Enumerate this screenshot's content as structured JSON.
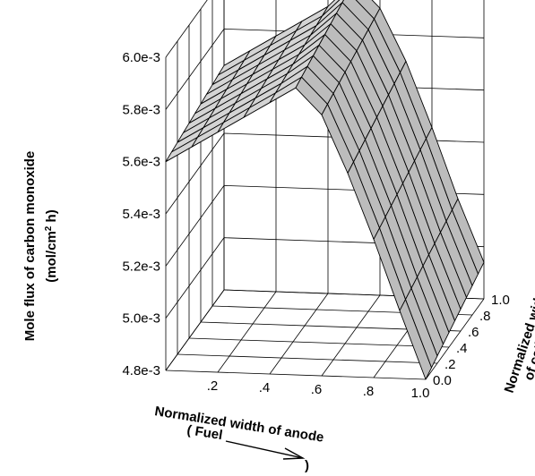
{
  "chart_data": {
    "type": "surface3d",
    "title": "",
    "zlabel_line1": "Mole flux of carbon monoxide",
    "zlabel_line2_prefix": "(mol/cm",
    "zlabel_line2_sup": "2",
    "zlabel_line2_suffix": " h)",
    "xlabel_line1": "Normalized width of anode",
    "xlabel_line2": "( Fuel",
    "xlabel_line2_end": ")",
    "ylabel_line1": "Normalized width",
    "ylabel_line2": "of cathode",
    "x_ticks": [
      ".2",
      ".4",
      ".6",
      ".8",
      "1.0"
    ],
    "y_ticks": [
      "0.0",
      ".2",
      ".4",
      ".6",
      ".8",
      "1.0"
    ],
    "z_ticks": [
      "4.8e-3",
      "5.0e-3",
      "5.2e-3",
      "5.4e-3",
      "5.6e-3",
      "5.8e-3",
      "6.0e-3"
    ],
    "xlim": [
      0.0,
      1.0
    ],
    "ylim": [
      0.0,
      1.0
    ],
    "zlim": [
      0.0048,
      0.006
    ],
    "x": [
      0.0,
      0.1,
      0.2,
      0.3,
      0.4,
      0.5,
      0.6,
      0.7,
      0.8,
      0.9,
      1.0
    ],
    "y": [
      0.0,
      0.1,
      0.2,
      0.3,
      0.4,
      0.5,
      0.6,
      0.7,
      0.8,
      0.9,
      1.0
    ],
    "z_at_y0": [
      0.0056,
      0.00566,
      0.00572,
      0.00578,
      0.00584,
      0.0059,
      0.0058,
      0.00558,
      0.00533,
      0.00506,
      0.0048
    ],
    "z_at_y1": [
      0.00566,
      0.00572,
      0.00578,
      0.00584,
      0.0059,
      0.006,
      0.0059,
      0.0057,
      0.00545,
      0.00518,
      0.00494
    ]
  }
}
